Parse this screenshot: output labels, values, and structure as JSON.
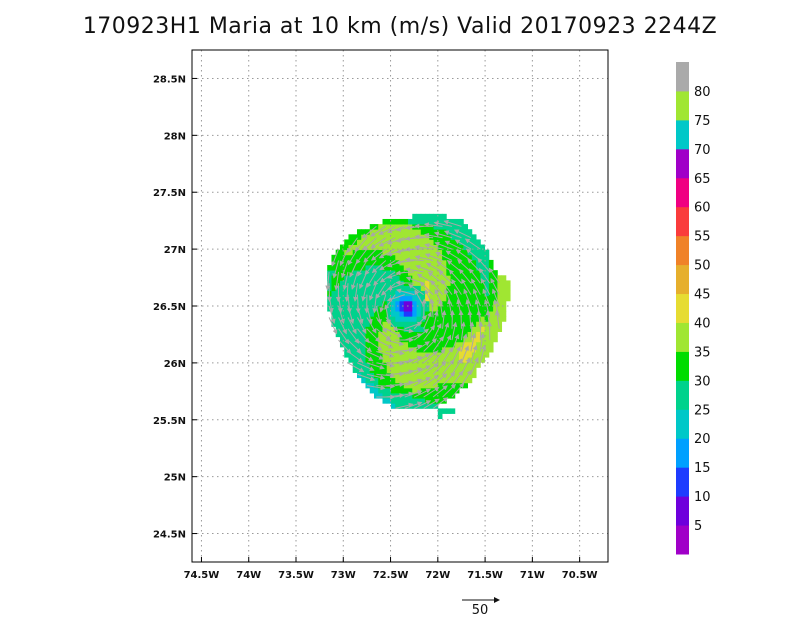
{
  "title": "170923H1 Maria at 10 km (m/s) Valid 20170923 2244Z",
  "map": {
    "lon_range": [
      -74.6,
      -70.2
    ],
    "lat_range": [
      24.25,
      28.75
    ],
    "x_ticks": [
      {
        "value": -74.5,
        "label": "74.5W"
      },
      {
        "value": -74.0,
        "label": "74W"
      },
      {
        "value": -73.5,
        "label": "73.5W"
      },
      {
        "value": -73.0,
        "label": "73W"
      },
      {
        "value": -72.5,
        "label": "72.5W"
      },
      {
        "value": -72.0,
        "label": "72W"
      },
      {
        "value": -71.5,
        "label": "71.5W"
      },
      {
        "value": -71.0,
        "label": "71W"
      },
      {
        "value": -70.5,
        "label": "70.5W"
      }
    ],
    "y_ticks": [
      {
        "value": 24.5,
        "label": "24.5N"
      },
      {
        "value": 25.0,
        "label": "25N"
      },
      {
        "value": 25.5,
        "label": "25.5N"
      },
      {
        "value": 26.0,
        "label": "26N"
      },
      {
        "value": 26.5,
        "label": "26.5N"
      },
      {
        "value": 27.0,
        "label": "27N"
      },
      {
        "value": 27.5,
        "label": "27.5N"
      },
      {
        "value": 28.0,
        "label": "28N"
      },
      {
        "value": 28.5,
        "label": "28.5N"
      }
    ],
    "grid": "dotted",
    "storm_center": {
      "lon": -72.35,
      "lat": 26.47
    }
  },
  "colorbar": {
    "levels": [
      "5",
      "10",
      "15",
      "20",
      "25",
      "30",
      "35",
      "40",
      "45",
      "50",
      "55",
      "60",
      "65",
      "70",
      "75",
      "80"
    ],
    "colors": [
      "#a000c8",
      "#6e00dc",
      "#1e3cff",
      "#00a0ff",
      "#00c8c8",
      "#00d28c",
      "#00dc00",
      "#a0e632",
      "#e6dc32",
      "#e6af2d",
      "#f08228",
      "#fa3c3c",
      "#f00082",
      "#a000c8",
      "#00c8c8",
      "#a0e632",
      "#aaaaaa"
    ]
  },
  "reference_vector": {
    "label": "50"
  }
}
